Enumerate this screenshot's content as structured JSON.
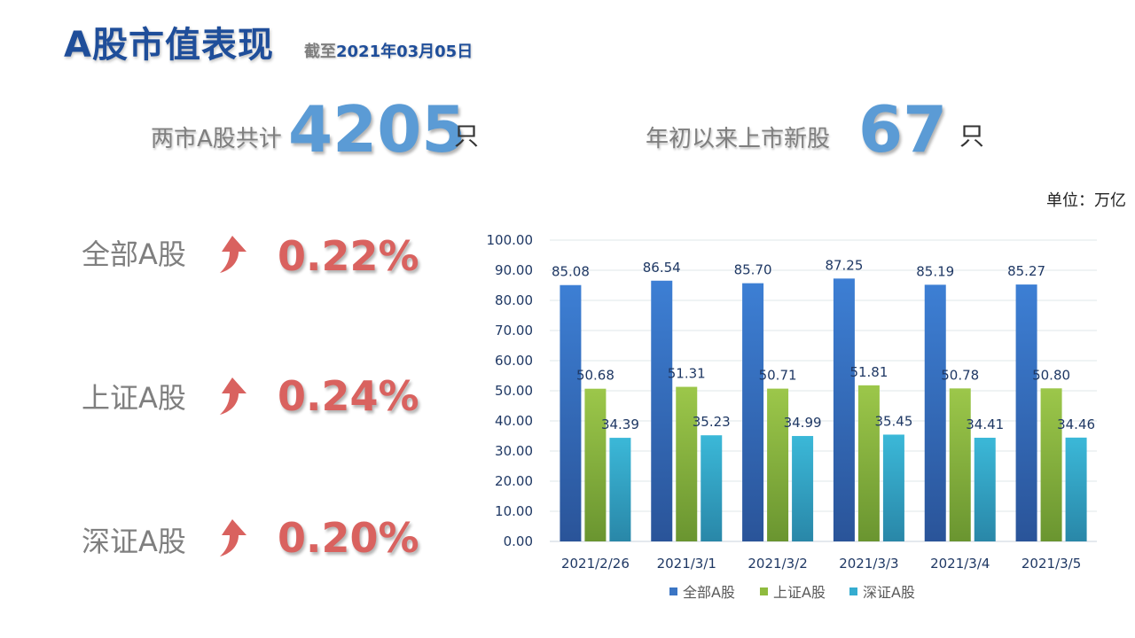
{
  "header": {
    "title": "A股市值表现",
    "asof_prefix": "截至",
    "asof_date": "2021年03月05日"
  },
  "stats": {
    "total_label": "两市A股共计",
    "total_value": "4205",
    "total_unit": "只",
    "new_label": "年初以来上市新股",
    "new_value": "67",
    "new_unit": "只"
  },
  "unit_note": "单位：万亿",
  "indices": [
    {
      "label": "全部A股",
      "value": "0.22%",
      "icon": "up-arrow-icon"
    },
    {
      "label": "上证A股",
      "value": "0.24%",
      "icon": "up-arrow-icon"
    },
    {
      "label": "深证A股",
      "value": "0.20%",
      "icon": "up-arrow-icon"
    }
  ],
  "colors": {
    "series1": "#3b75c4",
    "series2": "#8fbb3e",
    "series3": "#35acd0",
    "up": "#d9625f",
    "accent": "#1f4e9a"
  },
  "chart_data": {
    "type": "bar",
    "categories": [
      "2021/2/26",
      "2021/3/1",
      "2021/3/2",
      "2021/3/3",
      "2021/3/4",
      "2021/3/5"
    ],
    "series": [
      {
        "name": "全部A股",
        "values": [
          85.08,
          86.54,
          85.7,
          87.25,
          85.19,
          85.27
        ]
      },
      {
        "name": "上证A股",
        "values": [
          50.68,
          51.31,
          50.71,
          51.81,
          50.78,
          50.8
        ]
      },
      {
        "name": "深证A股",
        "values": [
          34.39,
          35.23,
          34.99,
          35.45,
          34.41,
          34.46
        ]
      }
    ],
    "title": "",
    "xlabel": "",
    "ylabel": "",
    "ylim": [
      0,
      100
    ],
    "yticks": [
      "0.00",
      "10.00",
      "20.00",
      "30.00",
      "40.00",
      "50.00",
      "60.00",
      "70.00",
      "80.00",
      "90.00",
      "100.00"
    ],
    "grid": true,
    "legend": "bottom"
  }
}
